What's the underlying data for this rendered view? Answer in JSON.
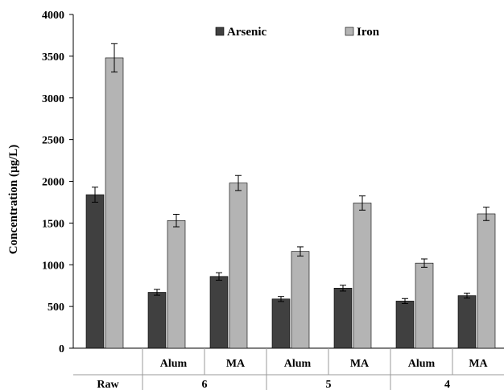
{
  "chart_data": {
    "type": "bar",
    "title": "",
    "ylabel": "Concentration (µg/L)",
    "xlabel": "",
    "ylim": [
      0,
      4000
    ],
    "yticks": [
      0,
      500,
      1000,
      1500,
      2000,
      2500,
      3000,
      3500,
      4000
    ],
    "grid": false,
    "legend_position": "top-center",
    "categories": [
      {
        "sub": "",
        "group": "Raw"
      },
      {
        "sub": "Alum",
        "group": "6"
      },
      {
        "sub": "MA",
        "group": "6"
      },
      {
        "sub": "Alum",
        "group": "5"
      },
      {
        "sub": "MA",
        "group": "5"
      },
      {
        "sub": "Alum",
        "group": "4"
      },
      {
        "sub": "MA",
        "group": "4"
      }
    ],
    "groups": [
      "Raw",
      "6",
      "5",
      "4"
    ],
    "series": [
      {
        "name": "Arsenic",
        "color": "#404040",
        "values": [
          1840,
          670,
          860,
          590,
          720,
          565,
          630
        ],
        "errors": [
          90,
          35,
          45,
          30,
          35,
          30,
          30
        ]
      },
      {
        "name": "Iron",
        "color": "#b4b4b4",
        "values": [
          3480,
          1530,
          1980,
          1160,
          1740,
          1020,
          1610
        ],
        "errors": [
          170,
          75,
          90,
          55,
          85,
          50,
          80
        ]
      }
    ]
  }
}
